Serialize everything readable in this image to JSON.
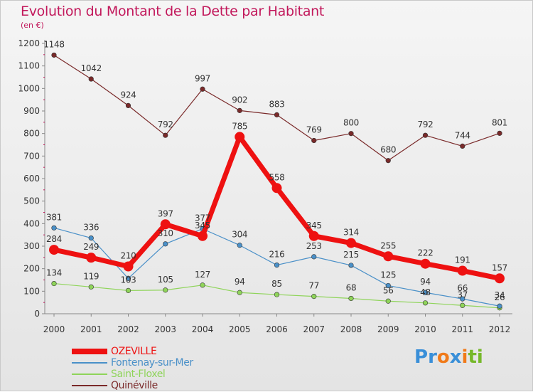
{
  "header": {
    "title": "Evolution du Montant de la Dette par Habitant",
    "subtitle": "(en €)"
  },
  "logo": {
    "text": "Proxiti",
    "colors": [
      "#3a8fd8",
      "#f07a1a",
      "#76b82a"
    ]
  },
  "chart_data": {
    "type": "line",
    "title": "Evolution du Montant de la Dette par Habitant",
    "ylabel": "(en €)",
    "xlabel": "",
    "x": [
      "2000",
      "2001",
      "2002",
      "2003",
      "2004",
      "2005",
      "2006",
      "2007",
      "2008",
      "2009",
      "2010",
      "2011",
      "2012"
    ],
    "ylim": [
      0,
      1200
    ],
    "yticks": [
      0,
      100,
      200,
      300,
      400,
      500,
      600,
      700,
      800,
      900,
      1000,
      1100,
      1200
    ],
    "grid": false,
    "legend": "bottom-left",
    "series": [
      {
        "name": "OZEVILLE",
        "color": "#ee1111",
        "values": [
          284,
          249,
          210,
          397,
          345,
          785,
          558,
          345,
          314,
          255,
          222,
          191,
          157
        ],
        "labels": [
          "284",
          "249",
          "210",
          "397",
          "345",
          "785",
          "558",
          "345",
          "314",
          "255",
          "222",
          "191",
          "157"
        ]
      },
      {
        "name": "Fontenay-sur-Mer",
        "color": "#4a90c8",
        "values": [
          381,
          336,
          157,
          310,
          377,
          304,
          216,
          253,
          215,
          125,
          94,
          66,
          34
        ],
        "labels": [
          "381",
          "336",
          "",
          "310",
          "377",
          "304",
          "216",
          "253",
          "215",
          "125",
          "94",
          "66",
          "34"
        ]
      },
      {
        "name": "Saint-Floxel",
        "color": "#8fd45a",
        "values": [
          134,
          119,
          103,
          105,
          127,
          94,
          85,
          77,
          68,
          56,
          48,
          37,
          26
        ],
        "labels": [
          "134",
          "119",
          "103",
          "105",
          "127",
          "94",
          "85",
          "77",
          "68",
          "56",
          "48",
          "37",
          "26"
        ]
      },
      {
        "name": "Quinéville",
        "color": "#7a2a2a",
        "values": [
          1148,
          1042,
          924,
          792,
          997,
          902,
          883,
          769,
          800,
          680,
          792,
          744,
          801
        ],
        "labels": [
          "1148",
          "1042",
          "924",
          "792",
          "997",
          "902",
          "883",
          "769",
          "800",
          "680",
          "792",
          "744",
          "801"
        ]
      }
    ]
  }
}
